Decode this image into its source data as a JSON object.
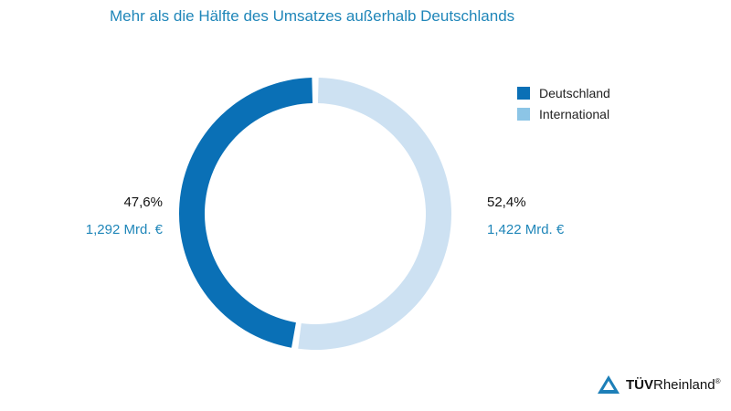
{
  "chart_data": {
    "type": "pie",
    "title": "Mehr als die Hälfte des Umsatzes außerhalb Deutschlands",
    "donut": true,
    "legend_position": "top-right",
    "slices": [
      {
        "name": "Deutschland",
        "percent_label": "47,6%",
        "value_label": "1,292 Mrd. €",
        "value": 1.292,
        "percent": 47.6,
        "color": "#0a70b6",
        "legend_color": "#0a70b6"
      },
      {
        "name": "International",
        "percent_label": "52,4%",
        "value_label": "1,422 Mrd. €",
        "value": 1.422,
        "percent": 52.4,
        "color": "#cde1f2",
        "legend_color": "#8cc5e6"
      }
    ]
  },
  "logo": {
    "bold": "TÜV",
    "rest": "Rheinland",
    "reg": "®"
  }
}
